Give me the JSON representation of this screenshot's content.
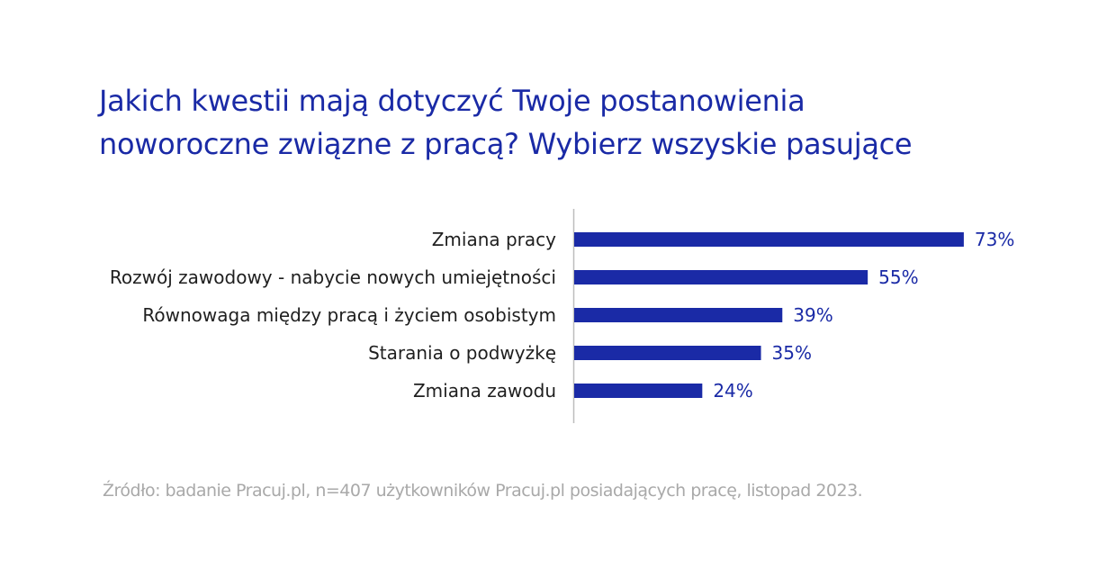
{
  "title_lines": [
    "Jakich kwestii mają dotyczyć Twoje postanowienia",
    "noworoczne związne z pracą? Wybierz wszyskie pasujące"
  ],
  "source": "Źródło: badanie Pracuj.pl, n=407 użytkowników Pracuj.pl posiadających pracę, listopad 2023.",
  "colors": {
    "bar": "#1a2aa6",
    "title": "#1a2aa6",
    "axis": "#bdbdbd",
    "source": "#a9a9a9"
  },
  "chart_data": {
    "type": "bar",
    "orientation": "horizontal",
    "categories": [
      "Zmiana pracy",
      "Rozwój zawodowy - nabycie nowych umiejętności",
      "Równowaga między pracą i życiem osobistym",
      "Starania o podwyżkę",
      "Zmiana zawodu"
    ],
    "values": [
      73,
      55,
      39,
      35,
      24
    ],
    "value_labels": [
      "73%",
      "55%",
      "39%",
      "35%",
      "24%"
    ],
    "xlim": [
      0,
      100
    ],
    "grid": false,
    "legend": "none"
  }
}
